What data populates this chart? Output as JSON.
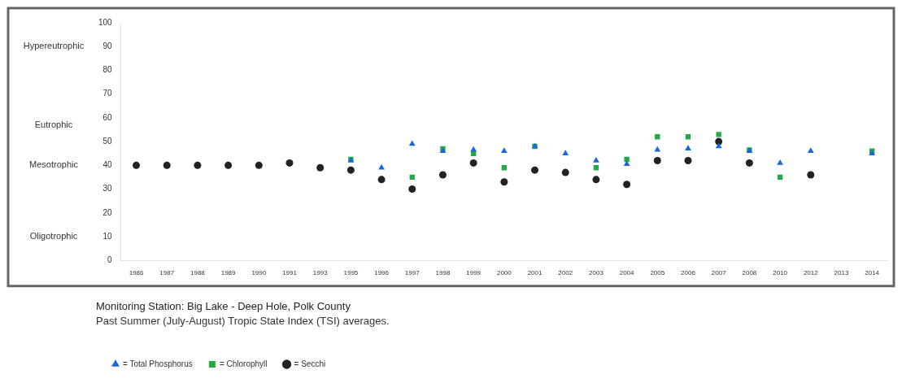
{
  "chart_data": {
    "type": "scatter",
    "title": "Monitoring Station: Big Lake - Deep Hole, Polk County",
    "subtitle": "Past Summer (July-August) Tropic State Index (TSI) averages.",
    "categories": [
      "1986",
      "1987",
      "1988",
      "1989",
      "1990",
      "1991",
      "1993",
      "1995",
      "1996",
      "1997",
      "1998",
      "1999",
      "2000",
      "2001",
      "2002",
      "2003",
      "2004",
      "2005",
      "2006",
      "2007",
      "2008",
      "2010",
      "2012",
      "2013",
      "2014"
    ],
    "series": [
      {
        "name": "= Secchi",
        "color": "#222222",
        "marker": "circle",
        "values": [
          40,
          40,
          40,
          40,
          40,
          41,
          39,
          38,
          34,
          30,
          36,
          41,
          33,
          38,
          37,
          34,
          32,
          42,
          42,
          50,
          41,
          null,
          36,
          null,
          null
        ]
      },
      {
        "name": "= Chlorophyll",
        "color": "#22aa44",
        "marker": "square",
        "values": [
          null,
          null,
          null,
          null,
          null,
          null,
          null,
          42.5,
          null,
          35,
          47,
          45,
          39,
          48,
          null,
          39,
          42.5,
          52,
          52,
          53,
          46.5,
          35,
          null,
          null,
          46
        ]
      },
      {
        "name": "= Total Phosphorus",
        "color": "#1a66dd",
        "marker": "triangle",
        "values": [
          null,
          null,
          null,
          null,
          null,
          null,
          null,
          42,
          39,
          49,
          46,
          46.5,
          46,
          48,
          45,
          42,
          40.5,
          46.5,
          47,
          48,
          46,
          41,
          46,
          null,
          45
        ]
      }
    ],
    "ylim": [
      0,
      100
    ],
    "yticks": [
      0,
      10,
      20,
      30,
      40,
      50,
      60,
      70,
      80,
      90,
      100
    ],
    "grid": false,
    "legend": "bottom",
    "annotations": [
      "Hypereutrophic",
      "Eutrophic",
      "Mesotrophic",
      "Oligotrophic"
    ]
  }
}
